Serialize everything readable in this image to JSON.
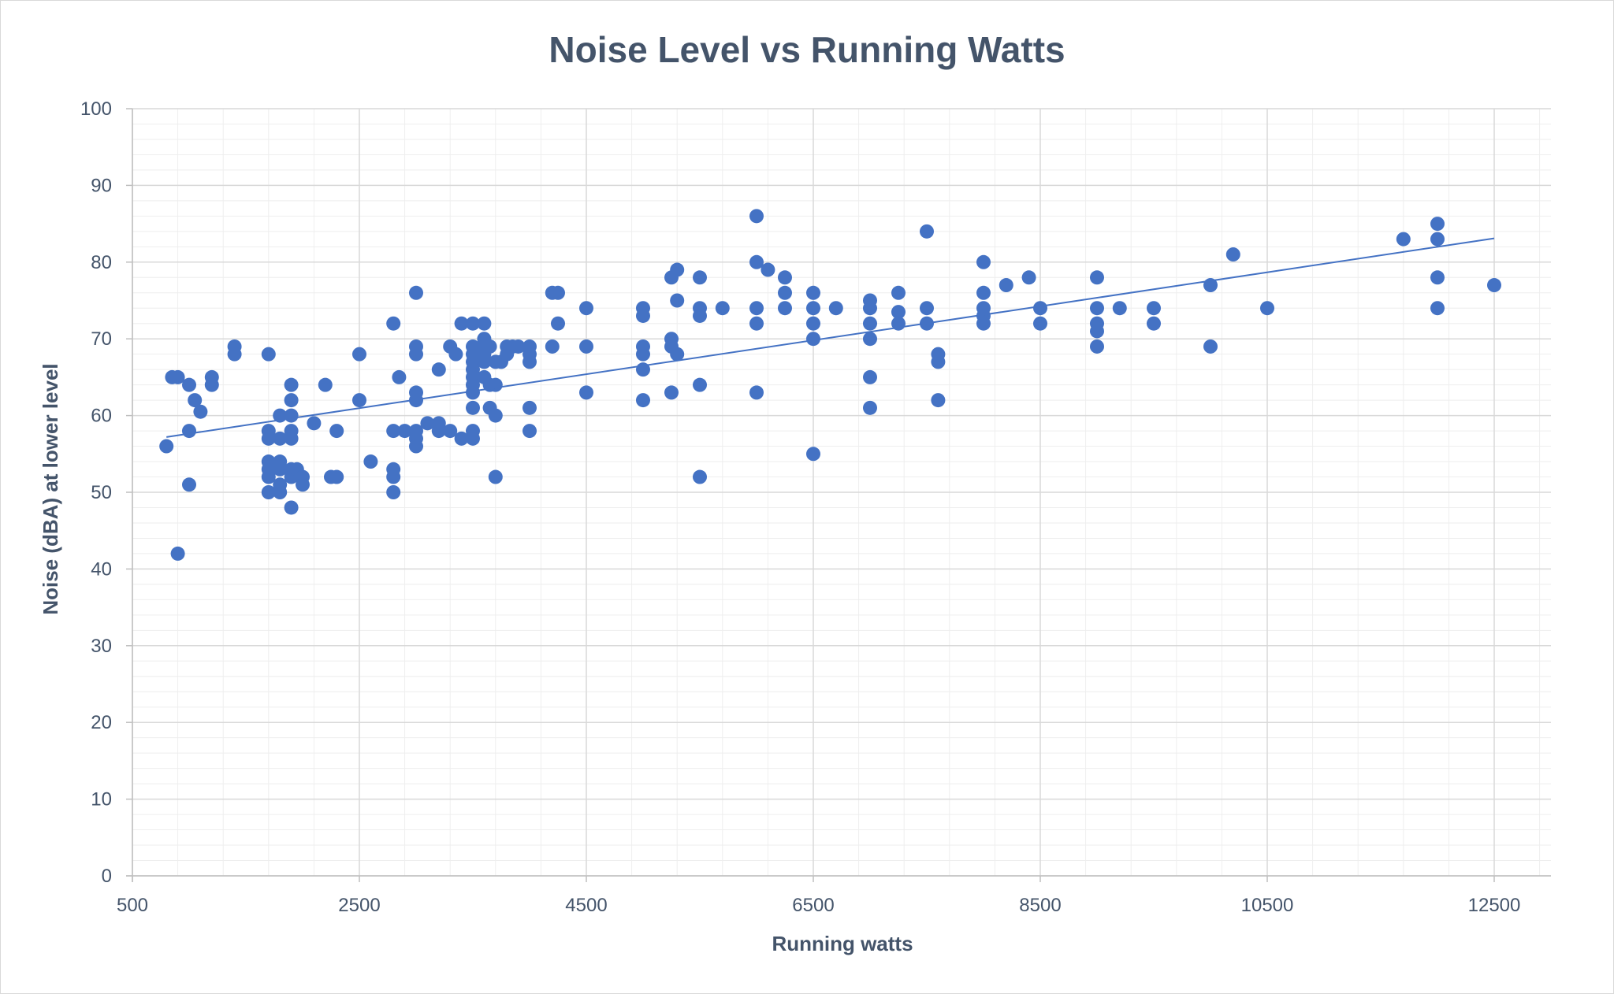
{
  "chart_data": {
    "type": "scatter",
    "title": "Noise Level vs Running Watts",
    "xlabel": "Running watts",
    "ylabel": "Noise (dBA) at lower level",
    "xlim": [
      500,
      13000
    ],
    "ylim": [
      0,
      100
    ],
    "x_ticks": [
      500,
      2500,
      4500,
      6500,
      8500,
      10500,
      12500
    ],
    "x_tick_labels": [
      "500",
      "2500",
      "4500",
      "6500",
      "8500",
      "10500",
      "12500"
    ],
    "y_ticks": [
      0,
      10,
      20,
      30,
      40,
      50,
      60,
      70,
      80,
      90,
      100
    ],
    "y_tick_labels": [
      "0",
      "10",
      "20",
      "30",
      "40",
      "50",
      "60",
      "70",
      "80",
      "90",
      "100"
    ],
    "grid": "major and minor gridlines",
    "legend": "none",
    "marker_color": "#4472c4",
    "trendline": {
      "type": "linear",
      "x": [
        800,
        12500
      ],
      "y": [
        57.2,
        83.1
      ],
      "color": "#4472c4"
    },
    "points": [
      [
        800,
        56
      ],
      [
        850,
        65
      ],
      [
        900,
        65
      ],
      [
        900,
        42
      ],
      [
        1000,
        64
      ],
      [
        1000,
        58
      ],
      [
        1000,
        51
      ],
      [
        1050,
        62
      ],
      [
        1100,
        60.5
      ],
      [
        1200,
        65
      ],
      [
        1200,
        64
      ],
      [
        1400,
        69
      ],
      [
        1400,
        68
      ],
      [
        1700,
        68
      ],
      [
        1700,
        58
      ],
      [
        1700,
        57
      ],
      [
        1700,
        54
      ],
      [
        1700,
        53
      ],
      [
        1700,
        52
      ],
      [
        1700,
        50
      ],
      [
        1800,
        60
      ],
      [
        1800,
        57
      ],
      [
        1800,
        54
      ],
      [
        1800,
        53
      ],
      [
        1800,
        51
      ],
      [
        1800,
        50
      ],
      [
        1900,
        64
      ],
      [
        1900,
        62
      ],
      [
        1900,
        60
      ],
      [
        1900,
        58
      ],
      [
        1900,
        57
      ],
      [
        1900,
        53
      ],
      [
        1900,
        52
      ],
      [
        1900,
        48
      ],
      [
        1950,
        53
      ],
      [
        2000,
        52
      ],
      [
        2000,
        51
      ],
      [
        2100,
        59
      ],
      [
        2200,
        64
      ],
      [
        2250,
        52
      ],
      [
        2300,
        52
      ],
      [
        2300,
        58
      ],
      [
        2500,
        68
      ],
      [
        2500,
        62
      ],
      [
        2600,
        54
      ],
      [
        2800,
        72
      ],
      [
        2800,
        58
      ],
      [
        2800,
        53
      ],
      [
        2800,
        52
      ],
      [
        2800,
        50
      ],
      [
        2850,
        65
      ],
      [
        2900,
        58
      ],
      [
        3000,
        76
      ],
      [
        3000,
        69
      ],
      [
        3000,
        68
      ],
      [
        3000,
        63
      ],
      [
        3000,
        62
      ],
      [
        3000,
        58
      ],
      [
        3000,
        57
      ],
      [
        3000,
        56
      ],
      [
        3100,
        59
      ],
      [
        3200,
        66
      ],
      [
        3200,
        59
      ],
      [
        3200,
        58
      ],
      [
        3300,
        69
      ],
      [
        3300,
        58
      ],
      [
        3350,
        68
      ],
      [
        3400,
        72
      ],
      [
        3400,
        57
      ],
      [
        3500,
        72
      ],
      [
        3500,
        69
      ],
      [
        3500,
        68
      ],
      [
        3500,
        67
      ],
      [
        3500,
        66
      ],
      [
        3500,
        65
      ],
      [
        3500,
        64
      ],
      [
        3500,
        63
      ],
      [
        3500,
        61
      ],
      [
        3500,
        58
      ],
      [
        3500,
        57
      ],
      [
        3600,
        72
      ],
      [
        3600,
        70
      ],
      [
        3600,
        69
      ],
      [
        3600,
        68
      ],
      [
        3600,
        67
      ],
      [
        3600,
        65
      ],
      [
        3650,
        69
      ],
      [
        3650,
        64
      ],
      [
        3650,
        61
      ],
      [
        3700,
        67
      ],
      [
        3700,
        64
      ],
      [
        3700,
        60
      ],
      [
        3700,
        52
      ],
      [
        3750,
        67
      ],
      [
        3800,
        69
      ],
      [
        3800,
        68
      ],
      [
        3850,
        69
      ],
      [
        3900,
        69
      ],
      [
        4000,
        69
      ],
      [
        4000,
        68
      ],
      [
        4000,
        67
      ],
      [
        4000,
        61
      ],
      [
        4000,
        58
      ],
      [
        4200,
        76
      ],
      [
        4200,
        69
      ],
      [
        4250,
        76
      ],
      [
        4250,
        72
      ],
      [
        4500,
        74
      ],
      [
        4500,
        69
      ],
      [
        4500,
        63
      ],
      [
        5000,
        74
      ],
      [
        5000,
        73
      ],
      [
        5000,
        69
      ],
      [
        5000,
        68
      ],
      [
        5000,
        66
      ],
      [
        5000,
        62
      ],
      [
        5250,
        78
      ],
      [
        5250,
        70
      ],
      [
        5250,
        69
      ],
      [
        5250,
        63
      ],
      [
        5300,
        79
      ],
      [
        5300,
        75
      ],
      [
        5300,
        68
      ],
      [
        5500,
        78
      ],
      [
        5500,
        74
      ],
      [
        5500,
        73
      ],
      [
        5500,
        64
      ],
      [
        5500,
        52
      ],
      [
        5700,
        74
      ],
      [
        6000,
        86
      ],
      [
        6000,
        80
      ],
      [
        6000,
        74
      ],
      [
        6000,
        72
      ],
      [
        6000,
        63
      ],
      [
        6100,
        79
      ],
      [
        6250,
        78
      ],
      [
        6250,
        76
      ],
      [
        6250,
        74
      ],
      [
        6500,
        76
      ],
      [
        6500,
        74
      ],
      [
        6500,
        72
      ],
      [
        6500,
        70
      ],
      [
        6500,
        55
      ],
      [
        6700,
        74
      ],
      [
        7000,
        75
      ],
      [
        7000,
        74
      ],
      [
        7000,
        72
      ],
      [
        7000,
        70
      ],
      [
        7000,
        65
      ],
      [
        7000,
        61
      ],
      [
        7250,
        76
      ],
      [
        7250,
        73.5
      ],
      [
        7250,
        72
      ],
      [
        7500,
        84
      ],
      [
        7500,
        74
      ],
      [
        7500,
        72
      ],
      [
        7600,
        68
      ],
      [
        7600,
        67
      ],
      [
        7600,
        62
      ],
      [
        8000,
        80
      ],
      [
        8000,
        76
      ],
      [
        8000,
        74
      ],
      [
        8000,
        73
      ],
      [
        8000,
        72
      ],
      [
        8200,
        77
      ],
      [
        8400,
        78
      ],
      [
        8500,
        74
      ],
      [
        8500,
        72
      ],
      [
        9000,
        78
      ],
      [
        9000,
        74
      ],
      [
        9000,
        72
      ],
      [
        9000,
        71
      ],
      [
        9000,
        69
      ],
      [
        9200,
        74
      ],
      [
        9500,
        74
      ],
      [
        9500,
        72
      ],
      [
        10000,
        77
      ],
      [
        10000,
        69
      ],
      [
        10200,
        81
      ],
      [
        10500,
        74
      ],
      [
        11700,
        83
      ],
      [
        12000,
        85
      ],
      [
        12000,
        83
      ],
      [
        12000,
        78
      ],
      [
        12000,
        74
      ],
      [
        12500,
        77
      ]
    ]
  }
}
